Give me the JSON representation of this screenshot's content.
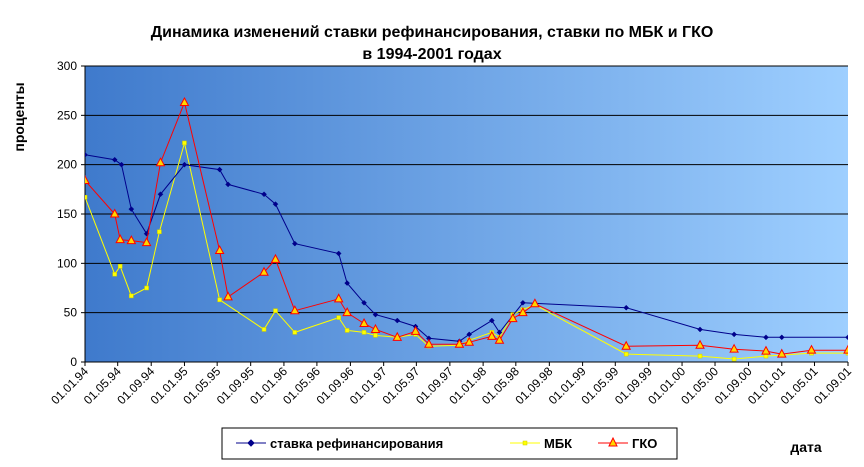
{
  "chart_data": {
    "type": "line",
    "title": [
      "Динамика изменений ставки рефинансирования, ставки по МБК и ГКО",
      "в 1994-2001 годах"
    ],
    "ylabel": "проценты",
    "xlabel": "дата",
    "ylim": [
      0,
      300
    ],
    "yticks": [
      "0",
      "50",
      "100",
      "150",
      "200",
      "250",
      "300"
    ],
    "xlim": [
      "1994-01-01",
      "2001-09-01"
    ],
    "xticks": [
      {
        "date": "1994-01-01",
        "label": "01.01.94"
      },
      {
        "date": "1994-05-01",
        "label": "01.05.94"
      },
      {
        "date": "1994-09-01",
        "label": "01.09.94"
      },
      {
        "date": "1995-01-01",
        "label": "01.01.95"
      },
      {
        "date": "1995-05-01",
        "label": "01.05.95"
      },
      {
        "date": "1995-09-01",
        "label": "01.09.95"
      },
      {
        "date": "1996-01-01",
        "label": "01.01.96"
      },
      {
        "date": "1996-05-01",
        "label": "01.05.96"
      },
      {
        "date": "1996-09-01",
        "label": "01.09.96"
      },
      {
        "date": "1997-01-01",
        "label": "01.01.97"
      },
      {
        "date": "1997-05-01",
        "label": "01.05.97"
      },
      {
        "date": "1997-09-01",
        "label": "01.09.97"
      },
      {
        "date": "1998-01-01",
        "label": "01.01.98"
      },
      {
        "date": "1998-05-01",
        "label": "01.05.98"
      },
      {
        "date": "1998-09-01",
        "label": "01.09.98"
      },
      {
        "date": "1999-01-01",
        "label": "01.01.99"
      },
      {
        "date": "1999-05-01",
        "label": "01.05.99"
      },
      {
        "date": "1999-09-01",
        "label": "01.09.99"
      },
      {
        "date": "2000-01-01",
        "label": "01.01.00"
      },
      {
        "date": "2000-05-01",
        "label": "01.05.00"
      },
      {
        "date": "2000-09-01",
        "label": "01.09.00"
      },
      {
        "date": "2001-01-01",
        "label": "01.01.01"
      },
      {
        "date": "2001-05-01",
        "label": "01.05.01"
      },
      {
        "date": "2001-09-01",
        "label": "01.09.01"
      }
    ],
    "grid": true,
    "legend": "bottom",
    "series": [
      {
        "name": "ставка рефинансирования",
        "color": "#00008B",
        "marker": "diamond",
        "points": [
          [
            "1994-01-01",
            210
          ],
          [
            "1994-04-20",
            205
          ],
          [
            "1994-05-15",
            200
          ],
          [
            "1994-06-20",
            155
          ],
          [
            "1994-08-15",
            130
          ],
          [
            "1994-10-05",
            170
          ],
          [
            "1995-01-01",
            200
          ],
          [
            "1995-05-10",
            195
          ],
          [
            "1995-06-10",
            180
          ],
          [
            "1995-10-20",
            170
          ],
          [
            "1995-12-01",
            160
          ],
          [
            "1996-02-10",
            120
          ],
          [
            "1996-07-20",
            110
          ],
          [
            "1996-08-20",
            80
          ],
          [
            "1996-10-21",
            60
          ],
          [
            "1996-12-02",
            48
          ],
          [
            "1997-02-20",
            42
          ],
          [
            "1997-04-28",
            36
          ],
          [
            "1997-06-16",
            24
          ],
          [
            "1997-10-06",
            21
          ],
          [
            "1997-11-11",
            28
          ],
          [
            "1998-02-02",
            42
          ],
          [
            "1998-03-02",
            30
          ],
          [
            "1998-05-27",
            60
          ],
          [
            "1999-06-10",
            55
          ],
          [
            "2000-03-07",
            33
          ],
          [
            "2000-07-10",
            28
          ],
          [
            "2000-11-04",
            25
          ],
          [
            "2001-01-01",
            25
          ],
          [
            "2001-09-01",
            25
          ]
        ]
      },
      {
        "name": "МБК",
        "color": "#FFFF00",
        "marker": "square",
        "points": [
          [
            "1994-01-01",
            167
          ],
          [
            "1994-04-20",
            89
          ],
          [
            "1994-05-10",
            97
          ],
          [
            "1994-06-20",
            67
          ],
          [
            "1994-08-15",
            75
          ],
          [
            "1994-10-01",
            132
          ],
          [
            "1995-01-01",
            222
          ],
          [
            "1995-05-10",
            63
          ],
          [
            "1995-10-20",
            33
          ],
          [
            "1995-12-01",
            52
          ],
          [
            "1996-02-10",
            30
          ],
          [
            "1996-07-20",
            45
          ],
          [
            "1996-08-20",
            32
          ],
          [
            "1996-10-21",
            30
          ],
          [
            "1996-12-02",
            27
          ],
          [
            "1997-02-20",
            25
          ],
          [
            "1997-04-28",
            28
          ],
          [
            "1997-06-16",
            16
          ],
          [
            "1997-10-06",
            17
          ],
          [
            "1997-11-11",
            22
          ],
          [
            "1998-02-02",
            30
          ],
          [
            "1998-03-02",
            25
          ],
          [
            "1998-04-20",
            48
          ],
          [
            "1998-05-27",
            53
          ],
          [
            "1998-07-10",
            58
          ],
          [
            "1999-06-10",
            8
          ],
          [
            "2000-03-07",
            6
          ],
          [
            "2000-07-10",
            3
          ],
          [
            "2000-11-04",
            6
          ],
          [
            "2001-01-01",
            7
          ],
          [
            "2001-04-20",
            9
          ],
          [
            "2001-09-01",
            9
          ]
        ]
      },
      {
        "name": "ГКО",
        "color": "#FF0000",
        "marker": "triangle",
        "marker_fill": "#FFD700",
        "points": [
          [
            "1994-01-01",
            184
          ],
          [
            "1994-04-20",
            150
          ],
          [
            "1994-05-10",
            124
          ],
          [
            "1994-06-20",
            123
          ],
          [
            "1994-08-15",
            121
          ],
          [
            "1994-10-05",
            202
          ],
          [
            "1995-01-01",
            263
          ],
          [
            "1995-05-10",
            113
          ],
          [
            "1995-06-10",
            66
          ],
          [
            "1995-10-20",
            91
          ],
          [
            "1995-12-01",
            104
          ],
          [
            "1996-02-10",
            52
          ],
          [
            "1996-07-20",
            64
          ],
          [
            "1996-08-20",
            50
          ],
          [
            "1996-10-21",
            39
          ],
          [
            "1996-12-02",
            33
          ],
          [
            "1997-02-20",
            25
          ],
          [
            "1997-04-28",
            31
          ],
          [
            "1997-06-16",
            18
          ],
          [
            "1997-10-06",
            18
          ],
          [
            "1997-11-11",
            20
          ],
          [
            "1998-02-02",
            26
          ],
          [
            "1998-03-02",
            22
          ],
          [
            "1998-04-20",
            44
          ],
          [
            "1998-05-27",
            50
          ],
          [
            "1998-07-10",
            59
          ],
          [
            "1999-06-10",
            16
          ],
          [
            "2000-03-07",
            17
          ],
          [
            "2000-07-10",
            13
          ],
          [
            "2000-11-04",
            11
          ],
          [
            "2001-01-01",
            8
          ],
          [
            "2001-04-20",
            12
          ],
          [
            "2001-09-01",
            12
          ]
        ]
      }
    ]
  }
}
